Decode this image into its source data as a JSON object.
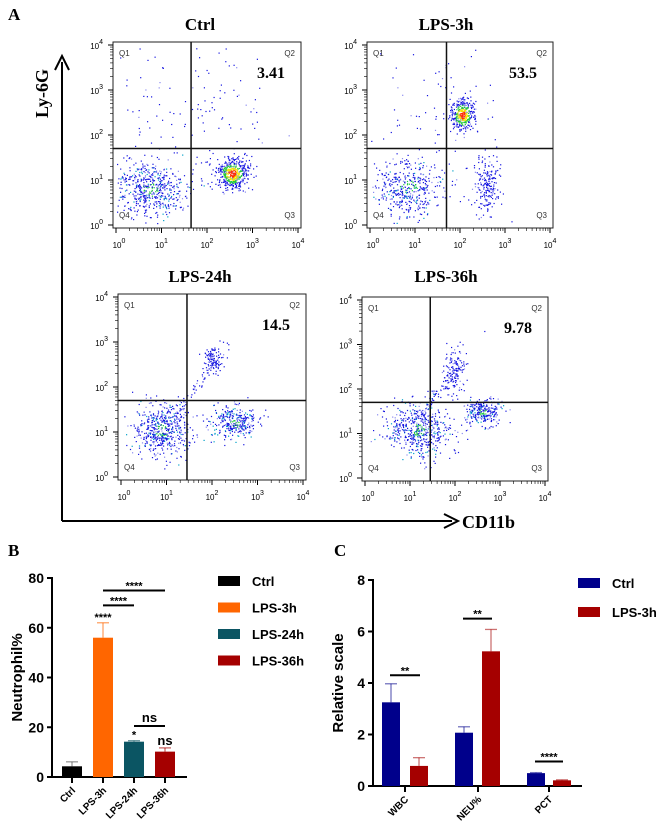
{
  "panel_labels": {
    "a": "A",
    "b": "B",
    "c": "C"
  },
  "panel_a": {
    "y_axis_label": "Ly-6G",
    "x_axis_label": "CD11b",
    "tick_base": "10",
    "tick_exponents": [
      "0",
      "1",
      "2",
      "3",
      "4"
    ],
    "quadrant_labels": [
      "Q1",
      "Q2",
      "Q3",
      "Q4"
    ],
    "plots": [
      {
        "title": "Ctrl",
        "q2_percent": "3.41"
      },
      {
        "title": "LPS-3h",
        "q2_percent": "53.5"
      },
      {
        "title": "LPS-24h",
        "q2_percent": "14.5"
      },
      {
        "title": "LPS-36h",
        "q2_percent": "9.78"
      }
    ]
  },
  "chart_data": [
    {
      "type": "bar",
      "panel": "B",
      "ylabel": "Neutrophil%",
      "xlabel": "",
      "ylim": [
        0,
        80
      ],
      "yticks": [
        "0",
        "20",
        "40",
        "60",
        "80"
      ],
      "categories": [
        "Ctrl",
        "LPS-3h",
        "LPS-24h",
        "LPS-36h"
      ],
      "values": [
        4.3,
        56,
        14.2,
        10.2
      ],
      "error_upper": [
        6.1,
        62,
        14.6,
        11.7
      ],
      "colors": [
        "#000000",
        "#ff6600",
        "#0b5563",
        "#a50000"
      ],
      "legend": [
        "Ctrl",
        "LPS-3h",
        "LPS-24h",
        "LPS-36h"
      ],
      "legend_position": "right",
      "bar_annotations": [
        "",
        "****",
        "*",
        "ns"
      ],
      "brackets": [
        {
          "from": 1,
          "to": 3,
          "y": 75,
          "label": "****"
        },
        {
          "from": 1,
          "to": 2,
          "y": 69,
          "label": "****"
        },
        {
          "from": 2,
          "to": 3,
          "y": 20.5,
          "label": "ns"
        }
      ]
    },
    {
      "type": "bar",
      "panel": "C",
      "ylabel": "Relative scale",
      "xlabel": "",
      "ylim": [
        0,
        8
      ],
      "yticks": [
        "0",
        "2",
        "4",
        "6",
        "8"
      ],
      "categories": [
        "WBC",
        "NEU%",
        "PCT"
      ],
      "series": [
        {
          "name": "Ctrl",
          "color": "#00008b",
          "values": [
            3.25,
            2.07,
            0.5
          ],
          "error_upper": [
            3.97,
            2.3,
            0.52
          ]
        },
        {
          "name": "LPS-3h",
          "color": "#a50000",
          "values": [
            0.78,
            5.23,
            0.22
          ],
          "error_upper": [
            1.1,
            6.08,
            0.24
          ]
        }
      ],
      "legend_position": "top-right",
      "brackets": [
        {
          "category": 0,
          "y": 4.3,
          "label": "**"
        },
        {
          "category": 1,
          "y": 6.5,
          "label": "**"
        },
        {
          "category": 2,
          "y": 0.95,
          "label": "****"
        }
      ]
    }
  ]
}
